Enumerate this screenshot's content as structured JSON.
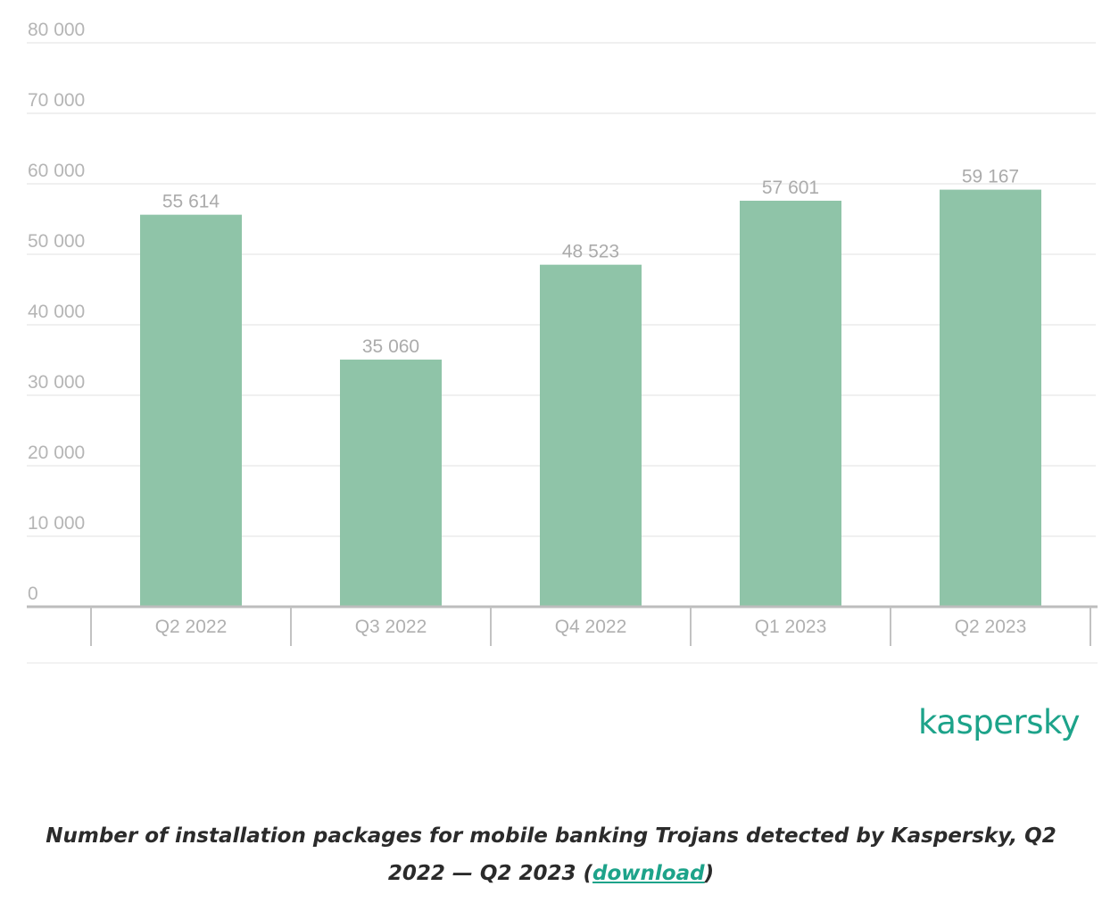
{
  "chart_data": {
    "type": "bar",
    "categories": [
      "Q2 2022",
      "Q3 2022",
      "Q4 2022",
      "Q1 2023",
      "Q2 2023"
    ],
    "values": [
      55614,
      35060,
      48523,
      57601,
      59167
    ],
    "value_labels": [
      "55 614",
      "35 060",
      "48 523",
      "57 601",
      "59 167"
    ],
    "y_tick_labels": [
      "0",
      "10 000",
      "20 000",
      "30 000",
      "40 000",
      "50 000",
      "60 000",
      "70 000",
      "80 000"
    ],
    "ylim": [
      0,
      80000
    ],
    "y_step": 10000,
    "grid": true,
    "bar_color": "#8fc4a8"
  },
  "brand": {
    "logo_text": "kaspersky",
    "color": "#1da38a"
  },
  "caption": {
    "text": "Number of installation packages for mobile banking Trojans detected by Kaspersky, Q2 2022 — Q2 2023 (",
    "link_label": "download",
    "close": ")"
  }
}
